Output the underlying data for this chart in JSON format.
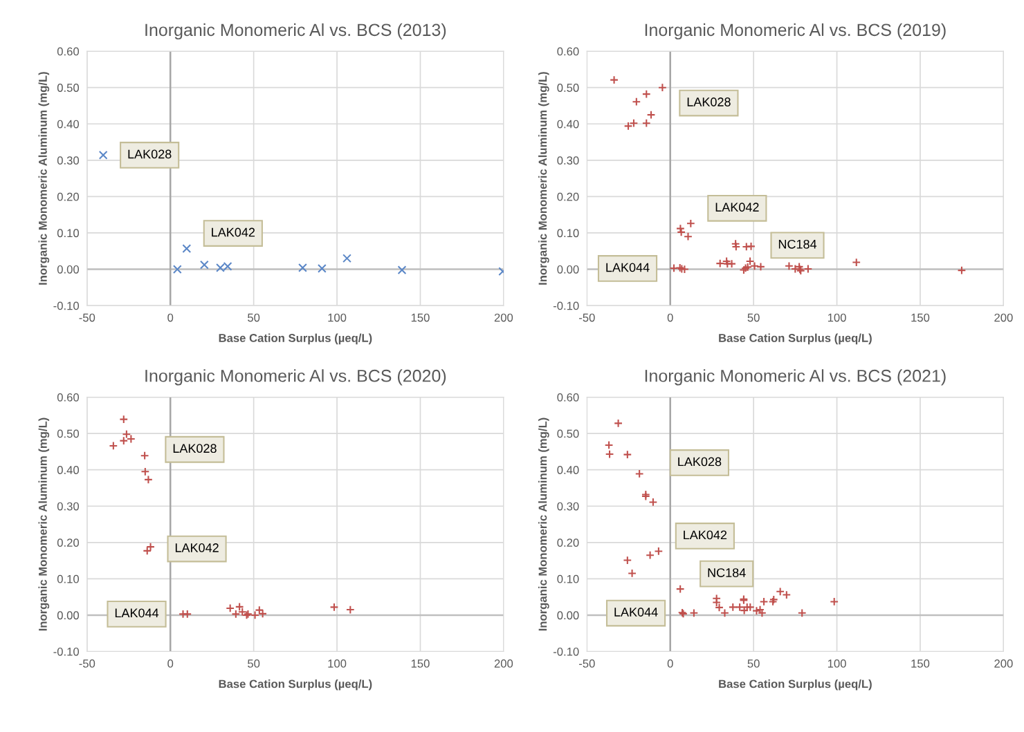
{
  "chart_data": [
    {
      "type": "scatter",
      "title": "Inorganic Monomeric Al vs. BCS (2013)",
      "xlabel": "Base Cation Surplus (µeq/L)",
      "ylabel": "Inorganic Monomeric Aluminum (mg/L)",
      "xlim": [
        -50,
        200
      ],
      "ylim": [
        -0.1,
        0.6
      ],
      "xticks": [
        -50,
        0,
        50,
        100,
        150,
        200
      ],
      "yticks": [
        {
          "value": -0.1,
          "label": "-0.10"
        },
        {
          "value": 0,
          "label": "0.00"
        },
        {
          "value": 0.1,
          "label": "0.10"
        },
        {
          "value": 0.2,
          "label": "0.20"
        },
        {
          "value": 0.3,
          "label": "0.30"
        },
        {
          "value": 0.4,
          "label": "0.40"
        },
        {
          "value": 0.5,
          "label": "0.50"
        },
        {
          "value": 0.6,
          "label": "0.60"
        }
      ],
      "grid": true,
      "marker": "cross",
      "ref_lines": [
        {
          "axis": "y",
          "value": 0,
          "color": "#bfbfbf"
        },
        {
          "axis": "x",
          "value": 0,
          "color": "#a6a6a6"
        }
      ],
      "series": [
        {
          "name": "LAK028",
          "color": "#5b87c7",
          "x": [
            -40.3
          ],
          "values": [
            0.314
          ]
        },
        {
          "name": "LAK042",
          "color": "#5b87c7",
          "x": [
            9.8
          ],
          "values": [
            0.057
          ]
        },
        {
          "color": "#5b87c7",
          "x": [
            4.2,
            20.4,
            30,
            34.4,
            79.4,
            91,
            106,
            139,
            199.5
          ],
          "values": [
            0.0,
            0.012,
            0.004,
            0.008,
            0.004,
            0.002,
            0.03,
            -0.002,
            -0.006
          ]
        }
      ]
    },
    {
      "type": "scatter",
      "title": "Inorganic Monomeric Al vs. BCS (2019)",
      "xlabel": "Base Cation Surplus (µeq/L)",
      "ylabel": "Inorganic Monomeric Aluminum (mg/L)",
      "xlim": [
        -50,
        200
      ],
      "ylim": [
        -0.1,
        0.6
      ],
      "xticks": [
        -50,
        0,
        50,
        100,
        150,
        200
      ],
      "yticks": [
        {
          "value": -0.1,
          "label": "-0.10"
        },
        {
          "value": 0,
          "label": "0.00"
        },
        {
          "value": 0.1,
          "label": "0.10"
        },
        {
          "value": 0.2,
          "label": "0.20"
        },
        {
          "value": 0.3,
          "label": "0.30"
        },
        {
          "value": 0.4,
          "label": "0.40"
        },
        {
          "value": 0.5,
          "label": "0.50"
        },
        {
          "value": 0.6,
          "label": "0.60"
        }
      ],
      "grid": true,
      "marker": "plus",
      "ref_lines": [
        {
          "axis": "y",
          "value": 0,
          "color": "#bfbfbf"
        },
        {
          "axis": "x",
          "value": 0,
          "color": "#a6a6a6"
        }
      ],
      "series": [
        {
          "name": "LAK028",
          "color": "#c0504d",
          "x": [
            -33.7,
            -4.7,
            -14.3,
            -20.3,
            -11.5,
            -25.2,
            -21.9,
            -14.3
          ],
          "values": [
            0.521,
            0.5,
            0.482,
            0.461,
            0.425,
            0.394,
            0.402,
            0.402
          ]
        },
        {
          "name": "LAK042",
          "color": "#c0504d",
          "x": [
            12.3,
            6.1,
            6.6,
            10.7
          ],
          "values": [
            0.126,
            0.112,
            0.102,
            0.09
          ]
        },
        {
          "name": "NC184",
          "color": "#c0504d",
          "x": [
            39.2,
            39.5,
            45.7,
            48.5
          ],
          "values": [
            0.07,
            0.062,
            0.062,
            0.063
          ]
        },
        {
          "name": "LAK044",
          "color": "#c0504d",
          "x": [
            2.2,
            5.8,
            6.9,
            8.6
          ],
          "values": [
            0.003,
            0.004,
            0.001,
            0.0
          ]
        },
        {
          "color": "#c0504d",
          "x": [
            29.9,
            33.8,
            34.3,
            36.9,
            44.1,
            45.2,
            46.5,
            47.9,
            50.6,
            54.3,
            71.3,
            75,
            77.4,
            77.8,
            78.3,
            82.7,
            111.7,
            174.9
          ],
          "values": [
            0.016,
            0.022,
            0.015,
            0.015,
            -0.002,
            0.003,
            0.006,
            0.022,
            0.009,
            0.007,
            0.009,
            0.001,
            0.007,
            0.0,
            -0.004,
            0.001,
            0.019,
            -0.003
          ]
        }
      ]
    },
    {
      "type": "scatter",
      "title": "Inorganic Monomeric Al vs. BCS (2020)",
      "xlabel": "Base Cation Surplus (µeq/L)",
      "ylabel": "Inorganic Monomeric Aluminum (mg/L)",
      "xlim": [
        -50,
        200
      ],
      "ylim": [
        -0.1,
        0.6
      ],
      "xticks": [
        -50,
        0,
        50,
        100,
        150,
        200
      ],
      "yticks": [
        {
          "value": -0.1,
          "label": "-0.10"
        },
        {
          "value": 0,
          "label": "0.00"
        },
        {
          "value": 0.1,
          "label": "0.10"
        },
        {
          "value": 0.2,
          "label": "0.20"
        },
        {
          "value": 0.3,
          "label": "0.30"
        },
        {
          "value": 0.4,
          "label": "0.40"
        },
        {
          "value": 0.5,
          "label": "0.50"
        },
        {
          "value": 0.6,
          "label": "0.60"
        }
      ],
      "grid": true,
      "marker": "plus",
      "ref_lines": [
        {
          "axis": "y",
          "value": 0,
          "color": "#bfbfbf"
        },
        {
          "axis": "x",
          "value": 0,
          "color": "#a6a6a6"
        }
      ],
      "series": [
        {
          "name": "LAK028",
          "color": "#c0504d",
          "x": [
            -28,
            -26.3,
            -28,
            -23.6,
            -34.2,
            -15.4,
            -15.1,
            -13.2
          ],
          "values": [
            0.539,
            0.498,
            0.48,
            0.485,
            0.466,
            0.439,
            0.395,
            0.373
          ]
        },
        {
          "name": "LAK042",
          "color": "#c0504d",
          "x": [
            -11.9,
            -13.9
          ],
          "values": [
            0.188,
            0.177
          ]
        },
        {
          "name": "LAK044",
          "color": "#c0504d",
          "x": [
            7.6,
            10.2
          ],
          "values": [
            0.003,
            0.003
          ]
        },
        {
          "color": "#c0504d",
          "x": [
            35.9,
            41.5,
            39.3,
            43.2,
            45.8,
            46.6,
            50.8,
            53.4,
            55.4,
            98.3,
            108
          ],
          "values": [
            0.019,
            0.023,
            0.003,
            0.009,
            0.0,
            0.003,
            0.0,
            0.014,
            0.004,
            0.022,
            0.015
          ]
        }
      ]
    },
    {
      "type": "scatter",
      "title": "Inorganic Monomeric Al vs. BCS (2021)",
      "xlabel": "Base Cation Surplus (µeq/L)",
      "ylabel": "Inorganic Monomeric Aluminum (mg/L)",
      "xlim": [
        -50,
        200
      ],
      "ylim": [
        -0.1,
        0.6
      ],
      "xticks": [
        -50,
        0,
        50,
        100,
        150,
        200
      ],
      "yticks": [
        {
          "value": -0.1,
          "label": "-0.10"
        },
        {
          "value": 0,
          "label": "0.00"
        },
        {
          "value": 0.1,
          "label": "0.10"
        },
        {
          "value": 0.2,
          "label": "0.20"
        },
        {
          "value": 0.3,
          "label": "0.30"
        },
        {
          "value": 0.4,
          "label": "0.40"
        },
        {
          "value": 0.5,
          "label": "0.50"
        },
        {
          "value": 0.6,
          "label": "0.60"
        }
      ],
      "grid": true,
      "marker": "plus",
      "ref_lines": [
        {
          "axis": "y",
          "value": 0,
          "color": "#bfbfbf"
        },
        {
          "axis": "x",
          "value": 0,
          "color": "#a6a6a6"
        }
      ],
      "series": [
        {
          "name": "LAK028",
          "color": "#c0504d",
          "x": [
            -31.2,
            -36.8,
            -36.4,
            -25.7,
            -18.5,
            -14.7,
            -14.7,
            -10.3
          ],
          "values": [
            0.528,
            0.468,
            0.443,
            0.442,
            0.389,
            0.332,
            0.327,
            0.311
          ]
        },
        {
          "name": "LAK042",
          "color": "#c0504d",
          "x": [
            -7.0,
            -12.1,
            -25.7,
            -22.9
          ],
          "values": [
            0.176,
            0.165,
            0.151,
            0.115
          ]
        },
        {
          "name": "NC184",
          "color": "#c0504d",
          "x": [
            6.0
          ],
          "values": [
            0.072
          ]
        },
        {
          "name": "LAK044",
          "color": "#c0504d",
          "x": [
            7.2,
            7.8,
            14.2
          ],
          "values": [
            0.007,
            0.004,
            0.006
          ]
        },
        {
          "color": "#c0504d",
          "x": [
            27.8,
            27.8,
            29.4,
            32.7,
            37.6,
            41.7,
            44.1,
            44.1,
            44.4,
            46.1,
            48,
            51.8,
            53.9,
            55.1,
            56.2,
            61.6,
            62.1,
            66,
            69.8,
            79.1,
            98.4
          ],
          "values": [
            0.046,
            0.035,
            0.021,
            0.006,
            0.022,
            0.022,
            0.044,
            0.041,
            0.013,
            0.022,
            0.022,
            0.012,
            0.015,
            0.006,
            0.037,
            0.037,
            0.043,
            0.065,
            0.056,
            0.006,
            0.037
          ]
        }
      ]
    }
  ]
}
